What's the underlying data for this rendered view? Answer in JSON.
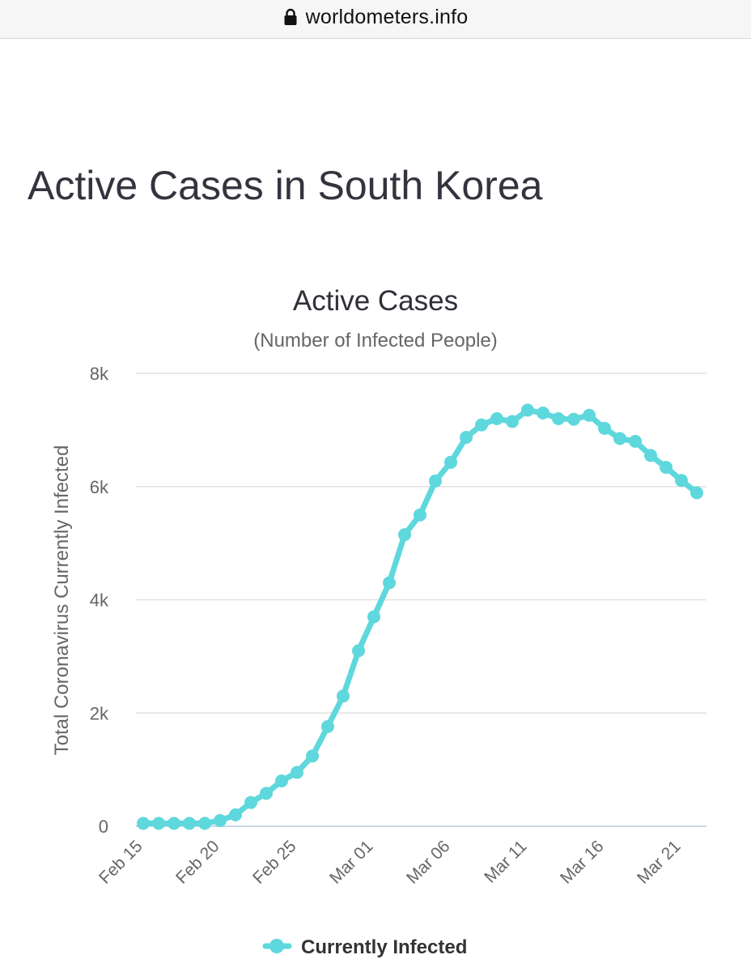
{
  "browser": {
    "url": "worldometers.info",
    "lock_icon": "lock-icon"
  },
  "page": {
    "title": "Active Cases in South Korea"
  },
  "colors": {
    "series": "#5ed8dc",
    "grid": "#e2e2e2",
    "baseline": "#ccd6eb"
  },
  "chart_data": {
    "type": "line",
    "title": "Active Cases",
    "subtitle": "(Number of Infected People)",
    "ylabel": "Total Coronavirus Currently Infected",
    "xlabel": "",
    "ylim": [
      0,
      8000
    ],
    "y_ticks": [
      0,
      2000,
      4000,
      6000,
      8000
    ],
    "y_tick_labels": [
      "0",
      "2k",
      "4k",
      "6k",
      "8k"
    ],
    "x_tick_labels": [
      "Feb 15",
      "Feb 20",
      "Feb 25",
      "Mar 01",
      "Mar 06",
      "Mar 11",
      "Mar 16",
      "Mar 21"
    ],
    "x": [
      "Feb 15",
      "Feb 16",
      "Feb 17",
      "Feb 18",
      "Feb 19",
      "Feb 20",
      "Feb 21",
      "Feb 22",
      "Feb 23",
      "Feb 24",
      "Feb 25",
      "Feb 26",
      "Feb 27",
      "Feb 28",
      "Feb 29",
      "Mar 01",
      "Mar 02",
      "Mar 03",
      "Mar 04",
      "Mar 05",
      "Mar 06",
      "Mar 07",
      "Mar 08",
      "Mar 09",
      "Mar 10",
      "Mar 11",
      "Mar 12",
      "Mar 13",
      "Mar 14",
      "Mar 15",
      "Mar 16",
      "Mar 17",
      "Mar 18",
      "Mar 19",
      "Mar 20",
      "Mar 21",
      "Mar 22"
    ],
    "grid": true,
    "legend_position": "bottom-center",
    "series": [
      {
        "name": "Currently Infected",
        "values": [
          50,
          50,
          50,
          50,
          50,
          100,
          200,
          420,
          580,
          800,
          950,
          1240,
          1760,
          2300,
          3100,
          3700,
          4300,
          5150,
          5500,
          6100,
          6430,
          6870,
          7090,
          7200,
          7150,
          7350,
          7300,
          7200,
          7190,
          7260,
          7030,
          6850,
          6800,
          6550,
          6340,
          6110,
          5890
        ]
      }
    ]
  }
}
